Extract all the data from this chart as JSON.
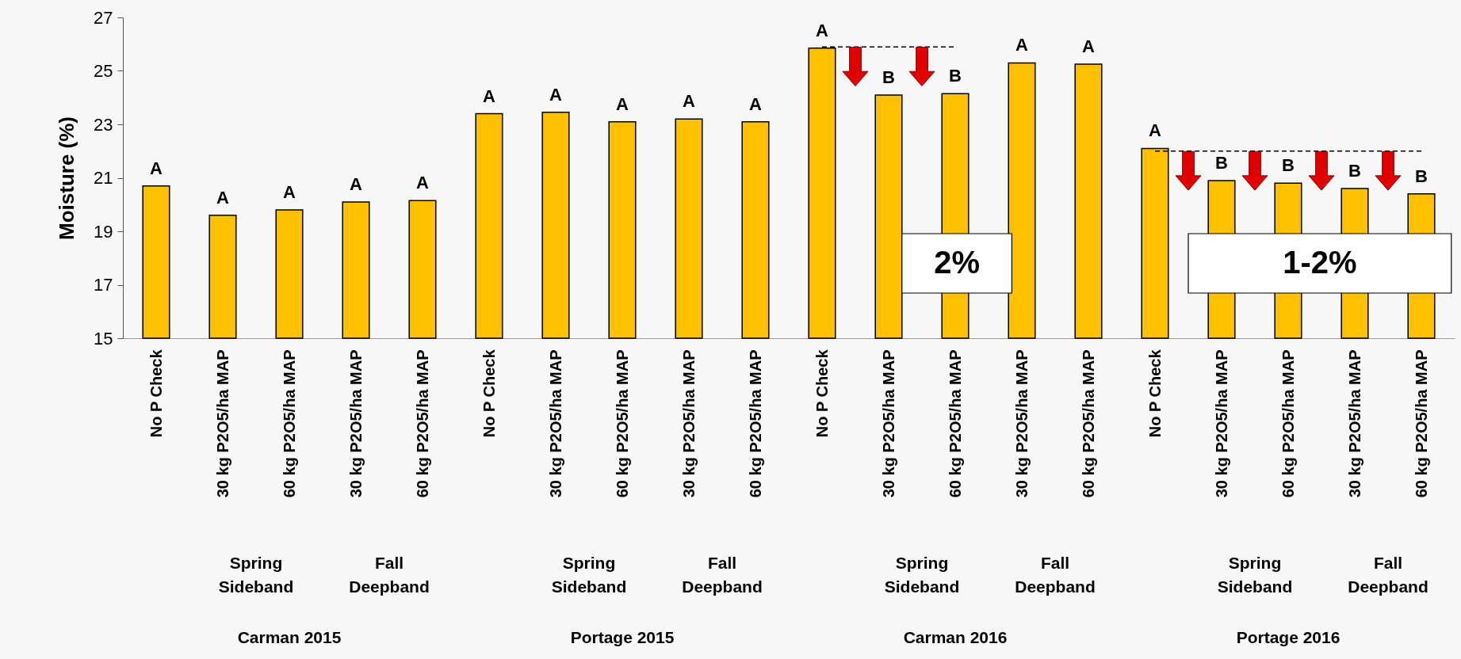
{
  "chart_data": {
    "type": "bar",
    "ylabel": "Moisture (%)",
    "categories": [
      "No P Check",
      "30 kg P2O5/ha MAP",
      "60 kg P2O5/ha MAP",
      "30 kg P2O5/ha MAP",
      "60 kg P2O5/ha MAP",
      "No P Check",
      "30 kg P2O5/ha MAP",
      "60 kg P2O5/ha MAP",
      "30 kg P2O5/ha MAP",
      "60 kg P2O5/ha MAP",
      "No P Check",
      "30 kg P2O5/ha MAP",
      "60 kg P2O5/ha MAP",
      "30 kg P2O5/ha MAP",
      "60 kg P2O5/ha MAP",
      "No P Check",
      "30 kg P2O5/ha MAP",
      "60 kg P2O5/ha MAP",
      "30 kg P2O5/ha MAP",
      "60 kg P2O5/ha MAP"
    ],
    "series": [
      {
        "color": "#ffc000",
        "values": [
          20.7,
          19.6,
          19.8,
          20.1,
          20.15,
          23.4,
          23.45,
          23.1,
          23.2,
          23.1,
          25.85,
          24.1,
          24.15,
          25.3,
          25.25,
          22.1,
          20.9,
          20.8,
          20.6,
          20.4
        ],
        "value_labels": [
          "A",
          "A",
          "A",
          "A",
          "A",
          "A",
          "A",
          "A",
          "A",
          "A",
          "A",
          "B",
          "B",
          "A",
          "A",
          "A",
          "B",
          "B",
          "B",
          "B"
        ]
      },
      {
        "type": "line",
        "color": "#000000",
        "line_style": "dashed",
        "values": [
          null,
          null,
          null,
          null,
          null,
          null,
          null,
          null,
          null,
          null,
          25.9,
          25.9,
          25.9,
          null,
          null,
          null,
          null,
          null,
          null,
          null
        ]
      },
      {
        "type": "line",
        "color": "#000000",
        "line_style": "dashed",
        "values": [
          null,
          null,
          null,
          null,
          null,
          null,
          null,
          null,
          null,
          null,
          null,
          null,
          null,
          null,
          null,
          22.0,
          22.0,
          22.0,
          22.0,
          22.0
        ]
      }
    ],
    "ylim": [
      15,
      27
    ],
    "yticks": [
      15,
      17,
      19,
      21,
      23,
      25,
      27
    ],
    "annotations": [
      "2%",
      "1-2%",
      "Spring Sideband",
      "Fall Deepband",
      "Spring Sideband",
      "Fall Deepband",
      "Spring Sideband",
      "Fall Deepband",
      "Spring Sideband",
      "Fall Deepband",
      "Carman 2015",
      "Portage 2015",
      "Carman 2016",
      "Portage 2016"
    ]
  }
}
